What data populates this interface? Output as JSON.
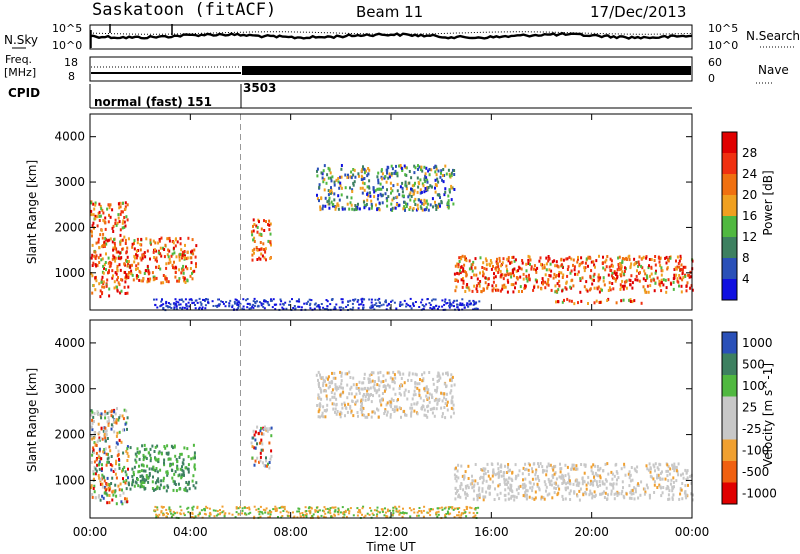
{
  "header": {
    "title": "Saskatoon (fitACF)",
    "beam": "Beam 11",
    "date": "17/Dec/2013"
  },
  "noise_panel": {
    "left_label": "N.Sky",
    "right_label": "N.Search",
    "left_ticks": [
      "10^5",
      "10^0"
    ],
    "right_ticks": [
      "10^5",
      "10^0"
    ]
  },
  "freq_panel": {
    "left_label_1": "Freq.",
    "left_label_2": "[MHz]",
    "left_ticks": [
      "18",
      "8"
    ],
    "right_ticks": [
      "60",
      "0"
    ],
    "right_label": "Nave"
  },
  "cpid_panel": {
    "label": "CPID",
    "segments": [
      {
        "text": "normal (fast) 151",
        "start_hour": 0
      },
      {
        "text": "3503",
        "start_hour": 6
      }
    ]
  },
  "time_axis": {
    "label": "Time UT",
    "ticks": [
      "00:00",
      "04:00",
      "08:00",
      "12:00",
      "16:00",
      "20:00",
      "00:00"
    ]
  },
  "colors": {
    "power": [
      "#1010e0",
      "#2a50b8",
      "#3d8060",
      "#50b840",
      "#f0a020",
      "#f07010",
      "#f03010",
      "#e00000"
    ],
    "velocity": [
      "#e00000",
      "#f06010",
      "#f0a030",
      "#c8c8c8",
      "#c8c8c8",
      "#50b840",
      "#3d8060",
      "#2a50b8"
    ]
  },
  "chart_data": [
    {
      "type": "heatmap",
      "title": "",
      "ylabel": "Slant Range [km]",
      "xlabel": "",
      "xlim_hours": [
        0,
        24
      ],
      "ylim": [
        180,
        4500
      ],
      "y_ticks": [
        1000,
        2000,
        3000,
        4000
      ],
      "colorbar_label": "Power [dB]",
      "colorbar_ticks": [
        "4",
        "8",
        "12",
        "16",
        "20",
        "24",
        "28"
      ],
      "regions": [
        {
          "start_hour": 0.0,
          "end_hour": 1.5,
          "range_min": 500,
          "range_max": 2600,
          "level": "high"
        },
        {
          "start_hour": 1.5,
          "end_hour": 4.2,
          "range_min": 800,
          "range_max": 1800,
          "level": "high"
        },
        {
          "start_hour": 6.4,
          "end_hour": 7.2,
          "range_min": 1300,
          "range_max": 2200,
          "level": "high"
        },
        {
          "start_hour": 9.0,
          "end_hour": 14.5,
          "range_min": 2400,
          "range_max": 3400,
          "level": "low"
        },
        {
          "start_hour": 14.5,
          "end_hour": 24.0,
          "range_min": 600,
          "range_max": 1400,
          "level": "high"
        },
        {
          "start_hour": 18.5,
          "end_hour": 22.0,
          "range_min": 350,
          "range_max": 450,
          "level": "high"
        }
      ]
    },
    {
      "type": "heatmap",
      "title": "",
      "ylabel": "Slant Range [km]",
      "xlabel": "Time UT",
      "xlim_hours": [
        0,
        24
      ],
      "ylim": [
        180,
        4500
      ],
      "y_ticks": [
        1000,
        2000,
        3000,
        4000
      ],
      "colorbar_label": "Velocity [m s^-1]",
      "colorbar_ticks": [
        "1000",
        "500",
        "100",
        "25",
        "-25",
        "-100",
        "-500",
        "-1000"
      ],
      "regions": [
        {
          "start_hour": 0.0,
          "end_hour": 1.5,
          "range_min": 500,
          "range_max": 2600,
          "level": "mixed"
        },
        {
          "start_hour": 1.5,
          "end_hour": 4.2,
          "range_min": 800,
          "range_max": 1800,
          "level": "positive"
        },
        {
          "start_hour": 6.4,
          "end_hour": 7.2,
          "range_min": 1300,
          "range_max": 2200,
          "level": "mixed"
        },
        {
          "start_hour": 9.0,
          "end_hour": 14.5,
          "range_min": 2400,
          "range_max": 3400,
          "level": "near-zero"
        },
        {
          "start_hour": 14.5,
          "end_hour": 24.0,
          "range_min": 600,
          "range_max": 1400,
          "level": "near-zero"
        }
      ]
    }
  ]
}
